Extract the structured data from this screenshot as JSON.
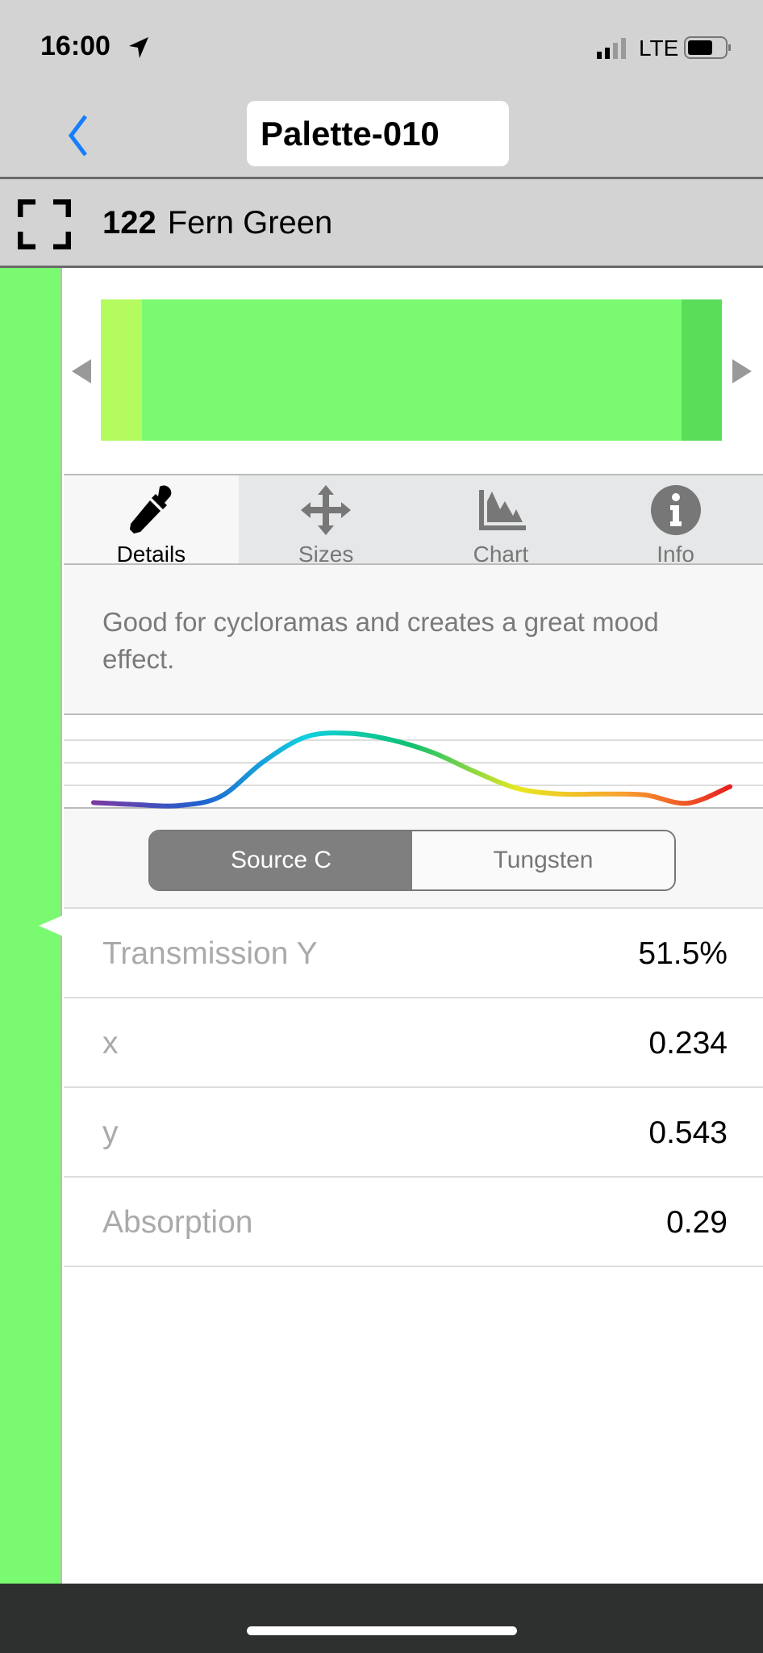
{
  "status_bar": {
    "time": "16:00",
    "network": "LTE",
    "icons": [
      "location-arrow-icon",
      "signal-icon",
      "battery-icon"
    ]
  },
  "nav": {
    "title": "Palette-010",
    "back_icon": "chevron-left-icon",
    "accent": "#157efb"
  },
  "filter": {
    "number": "122",
    "name": "Fern Green",
    "expand_icon": "fullscreen-icon"
  },
  "swatch": {
    "colors": {
      "left": "#b4fb5f",
      "main": "#7afa71",
      "right": "#5ade5a"
    }
  },
  "tabs": [
    {
      "label": "Details",
      "icon": "eyedropper-icon",
      "active": true
    },
    {
      "label": "Sizes",
      "icon": "move-arrows-icon"
    },
    {
      "label": "Chart",
      "icon": "area-chart-icon"
    },
    {
      "label": "Info",
      "icon": "info-circle-icon"
    }
  ],
  "description": "Good for cycloramas and creates a great mood effect.",
  "chart_data": {
    "type": "line",
    "values": [
      6.7,
      4.5,
      3.4,
      13.5,
      51,
      78,
      82,
      75,
      61,
      40,
      22,
      16,
      16,
      15,
      6,
      24
    ],
    "ylim": [
      0,
      100
    ],
    "grid": true,
    "color_gradient": [
      "#7a3aa0",
      "#2060d0",
      "#10d0e0",
      "#10c070",
      "#e8e820",
      "#f8a030",
      "#e82020"
    ]
  },
  "illuminant": {
    "options": [
      "Source C",
      "Tungsten"
    ],
    "selected": "Source C"
  },
  "properties": [
    {
      "label": "Transmission Y",
      "value": "51.5%"
    },
    {
      "label": "x",
      "value": "0.234"
    },
    {
      "label": "y",
      "value": "0.543"
    },
    {
      "label": "Absorption",
      "value": "0.29"
    }
  ]
}
